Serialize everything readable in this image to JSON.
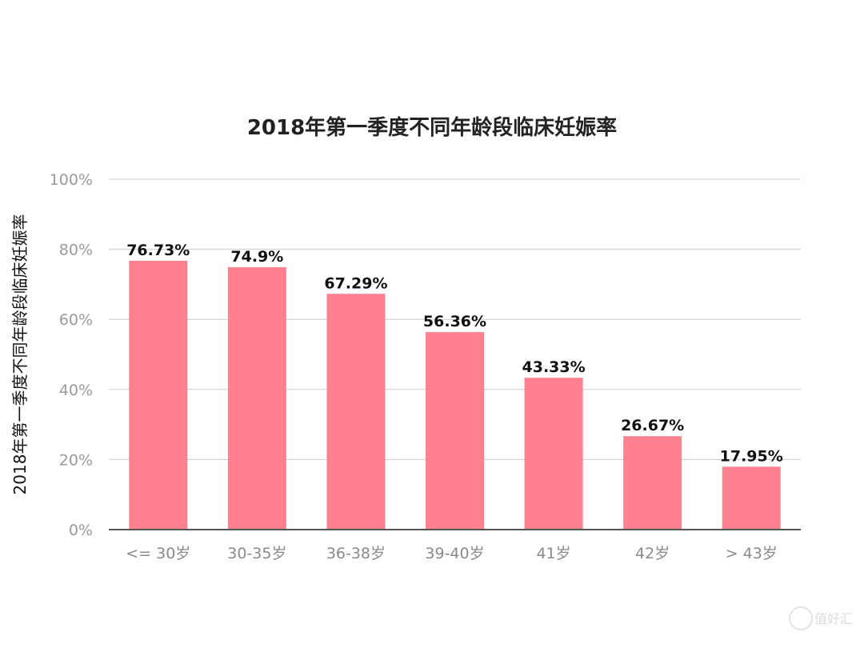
{
  "chart_data": {
    "type": "bar",
    "title": "2018年第一季度不同年龄段临床妊娠率",
    "xlabel": "",
    "ylabel": "2018年第一季度不同年龄段临床妊娠率",
    "categories": [
      "<= 30岁",
      "30-35岁",
      "36-38岁",
      "39-40岁",
      "41岁",
      "42岁",
      "> 43岁"
    ],
    "values": [
      76.73,
      74.9,
      67.29,
      56.36,
      43.33,
      26.67,
      17.95
    ],
    "value_labels": [
      "76.73%",
      "74.9%",
      "67.29%",
      "56.36%",
      "43.33%",
      "26.67%",
      "17.95%"
    ],
    "ylim": [
      0,
      100
    ],
    "yticks": [
      0,
      20,
      40,
      60,
      80,
      100
    ],
    "ytick_labels": [
      "0%",
      "20%",
      "40%",
      "60%",
      "80%",
      "100%"
    ],
    "grid": true,
    "colors": {
      "bar": "#ff808f",
      "grid": "#cccccc",
      "axis": "#555555"
    }
  },
  "watermark": {
    "text": "值好汇"
  }
}
